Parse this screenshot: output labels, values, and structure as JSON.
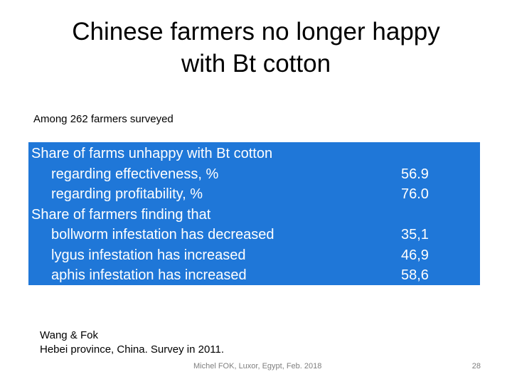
{
  "slide": {
    "title_line1": "Chinese farmers no longer happy",
    "title_line2": "with Bt cotton",
    "subtitle": "Among 262 farmers surveyed",
    "table": {
      "rows": [
        {
          "label": "Share of farms unhappy with Bt cotton",
          "value": ""
        },
        {
          "label": "regarding effectiveness, %",
          "value": "56.9"
        },
        {
          "label": "regarding profitability, %",
          "value": "76.0"
        },
        {
          "label": "Share of farmers finding that",
          "value": ""
        },
        {
          "label": "bollworm infestation has decreased",
          "value": "35,1"
        },
        {
          "label": "lygus infestation has increased",
          "value": "46,9"
        },
        {
          "label": "aphis infestation has increased",
          "value": "58,6"
        }
      ]
    },
    "source_line1": "Wang & Fok",
    "source_line2": "Hebei province, China. Survey in 2011.",
    "footer": "Michel FOK, Luxor, Egypt, Feb. 2018",
    "page_number": "28",
    "colors": {
      "table_background": "#1f77d8",
      "table_text": "#ffffff",
      "footer_text": "#7f7f7f"
    }
  }
}
